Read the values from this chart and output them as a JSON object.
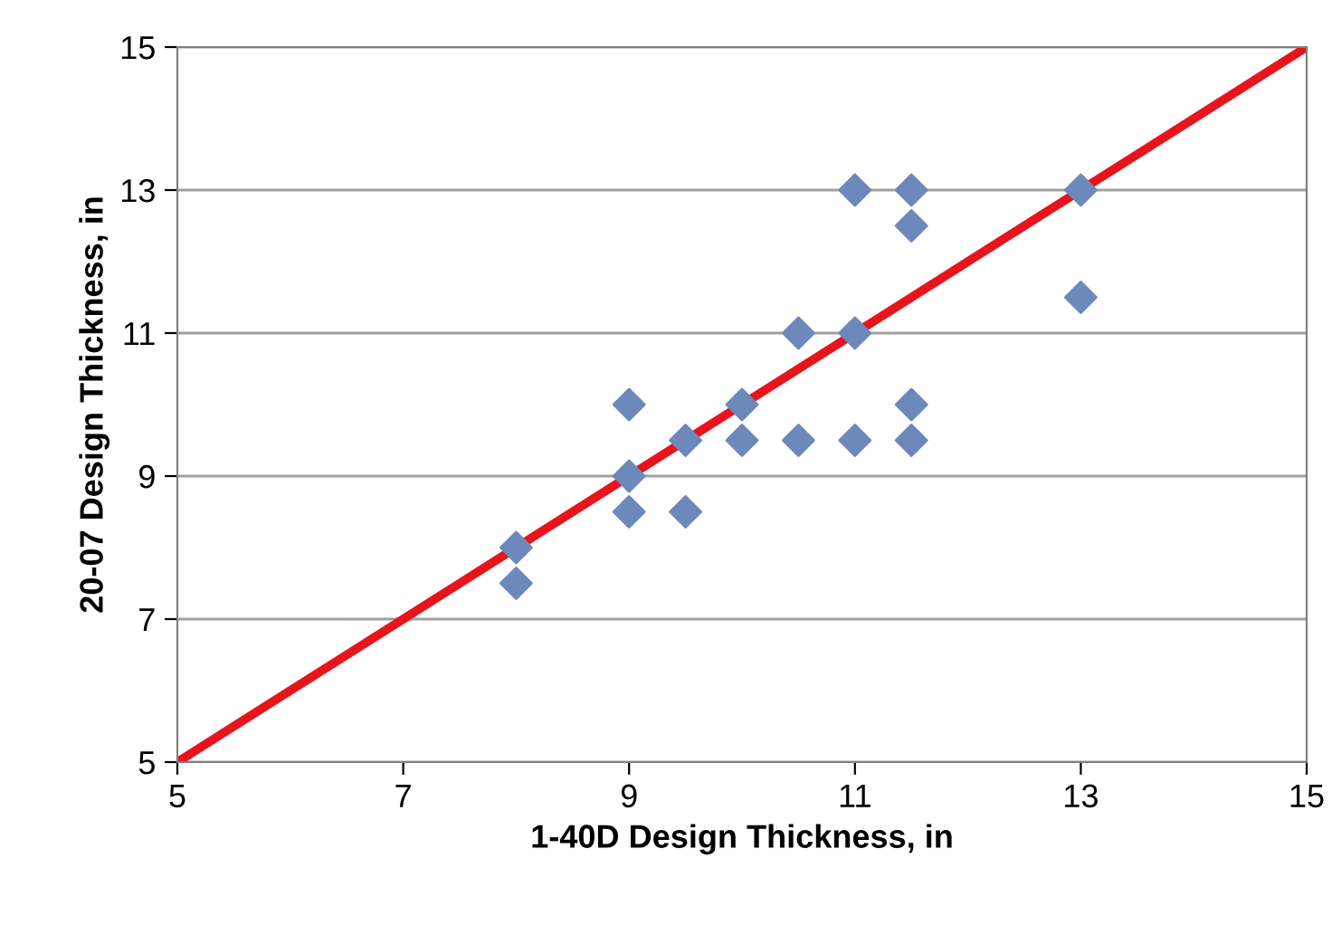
{
  "chart_data": {
    "type": "scatter",
    "xlabel": "1-40D Design Thickness, in",
    "ylabel": "20-07 Design Thickness, in",
    "series": [
      {
        "type": "line",
        "color": "#e8141c",
        "x": [
          5,
          15
        ],
        "values": [
          5,
          15
        ],
        "marker": "none",
        "line_style": "solid"
      },
      {
        "color": "#6d88bb",
        "marker": "diamond",
        "x": [
          8,
          8,
          9,
          9,
          9,
          9.5,
          9.5,
          10,
          10,
          10.5,
          10.5,
          11,
          11,
          11,
          11.5,
          11.5,
          11.5,
          11.5,
          13,
          13
        ],
        "values": [
          8,
          7.5,
          10,
          9,
          8.5,
          9.5,
          8.5,
          10,
          9.5,
          11,
          9.5,
          13,
          11,
          9.5,
          13,
          12.5,
          10,
          9.5,
          13,
          11.5
        ]
      }
    ],
    "xlim": [
      5,
      15
    ],
    "ylim": [
      5,
      15
    ],
    "xticks": [
      5,
      7,
      9,
      11,
      13,
      15
    ],
    "yticks": [
      5,
      7,
      9,
      11,
      13,
      15
    ],
    "grid": "y",
    "legend": false
  }
}
